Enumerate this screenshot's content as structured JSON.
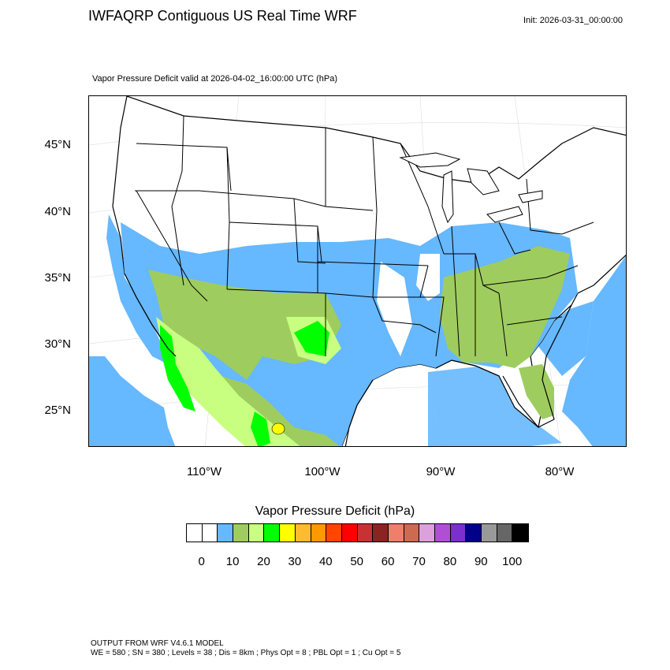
{
  "header": {
    "title": "IWFAQRP Contiguous US Real Time WRF",
    "init": "Init: 2026-03-31_00:00:00",
    "subtitle": "Vapor Pressure Deficit valid at 2026-04-02_16:00:00 UTC   (hPa)"
  },
  "axes": {
    "lat_labels": [
      "45°N",
      "40°N",
      "35°N",
      "30°N",
      "25°N"
    ],
    "lon_labels": [
      "110°W",
      "100°W",
      "90°W",
      "80°W"
    ]
  },
  "legend": {
    "title": "Vapor Pressure Deficit  (hPa)",
    "labels": [
      "0",
      "10",
      "20",
      "30",
      "40",
      "50",
      "60",
      "70",
      "80",
      "90",
      "100"
    ],
    "colors": [
      "#ffffff",
      "#ffffff",
      "#66b8ff",
      "#9fcc5f",
      "#c8ff80",
      "#00ff00",
      "#ffff00",
      "#ffbb2e",
      "#ff9900",
      "#ff4500",
      "#ff0000",
      "#c83232",
      "#8b2323",
      "#ee7f6b",
      "#cd6a4f",
      "#dda0dd",
      "#b04fd6",
      "#7b2fcf",
      "#00008b",
      "#999999",
      "#666666",
      "#000000"
    ]
  },
  "map": {
    "colors": {
      "ocean_fill": "#5fb6ff",
      "low": "#ffffff",
      "blue": "#66b8ff",
      "olive": "#9fcc5f",
      "light_green": "#c8ff80",
      "green": "#00ff00",
      "yellow": "#ffff00"
    }
  },
  "footer": {
    "line1": "OUTPUT FROM WRF V4.6.1 MODEL",
    "line2": "WE = 580 ; SN = 380 ; Levels = 38 ; Dis = 8km ; Phys Opt = 8 ; PBL Opt = 1 ; Cu Opt = 5"
  }
}
